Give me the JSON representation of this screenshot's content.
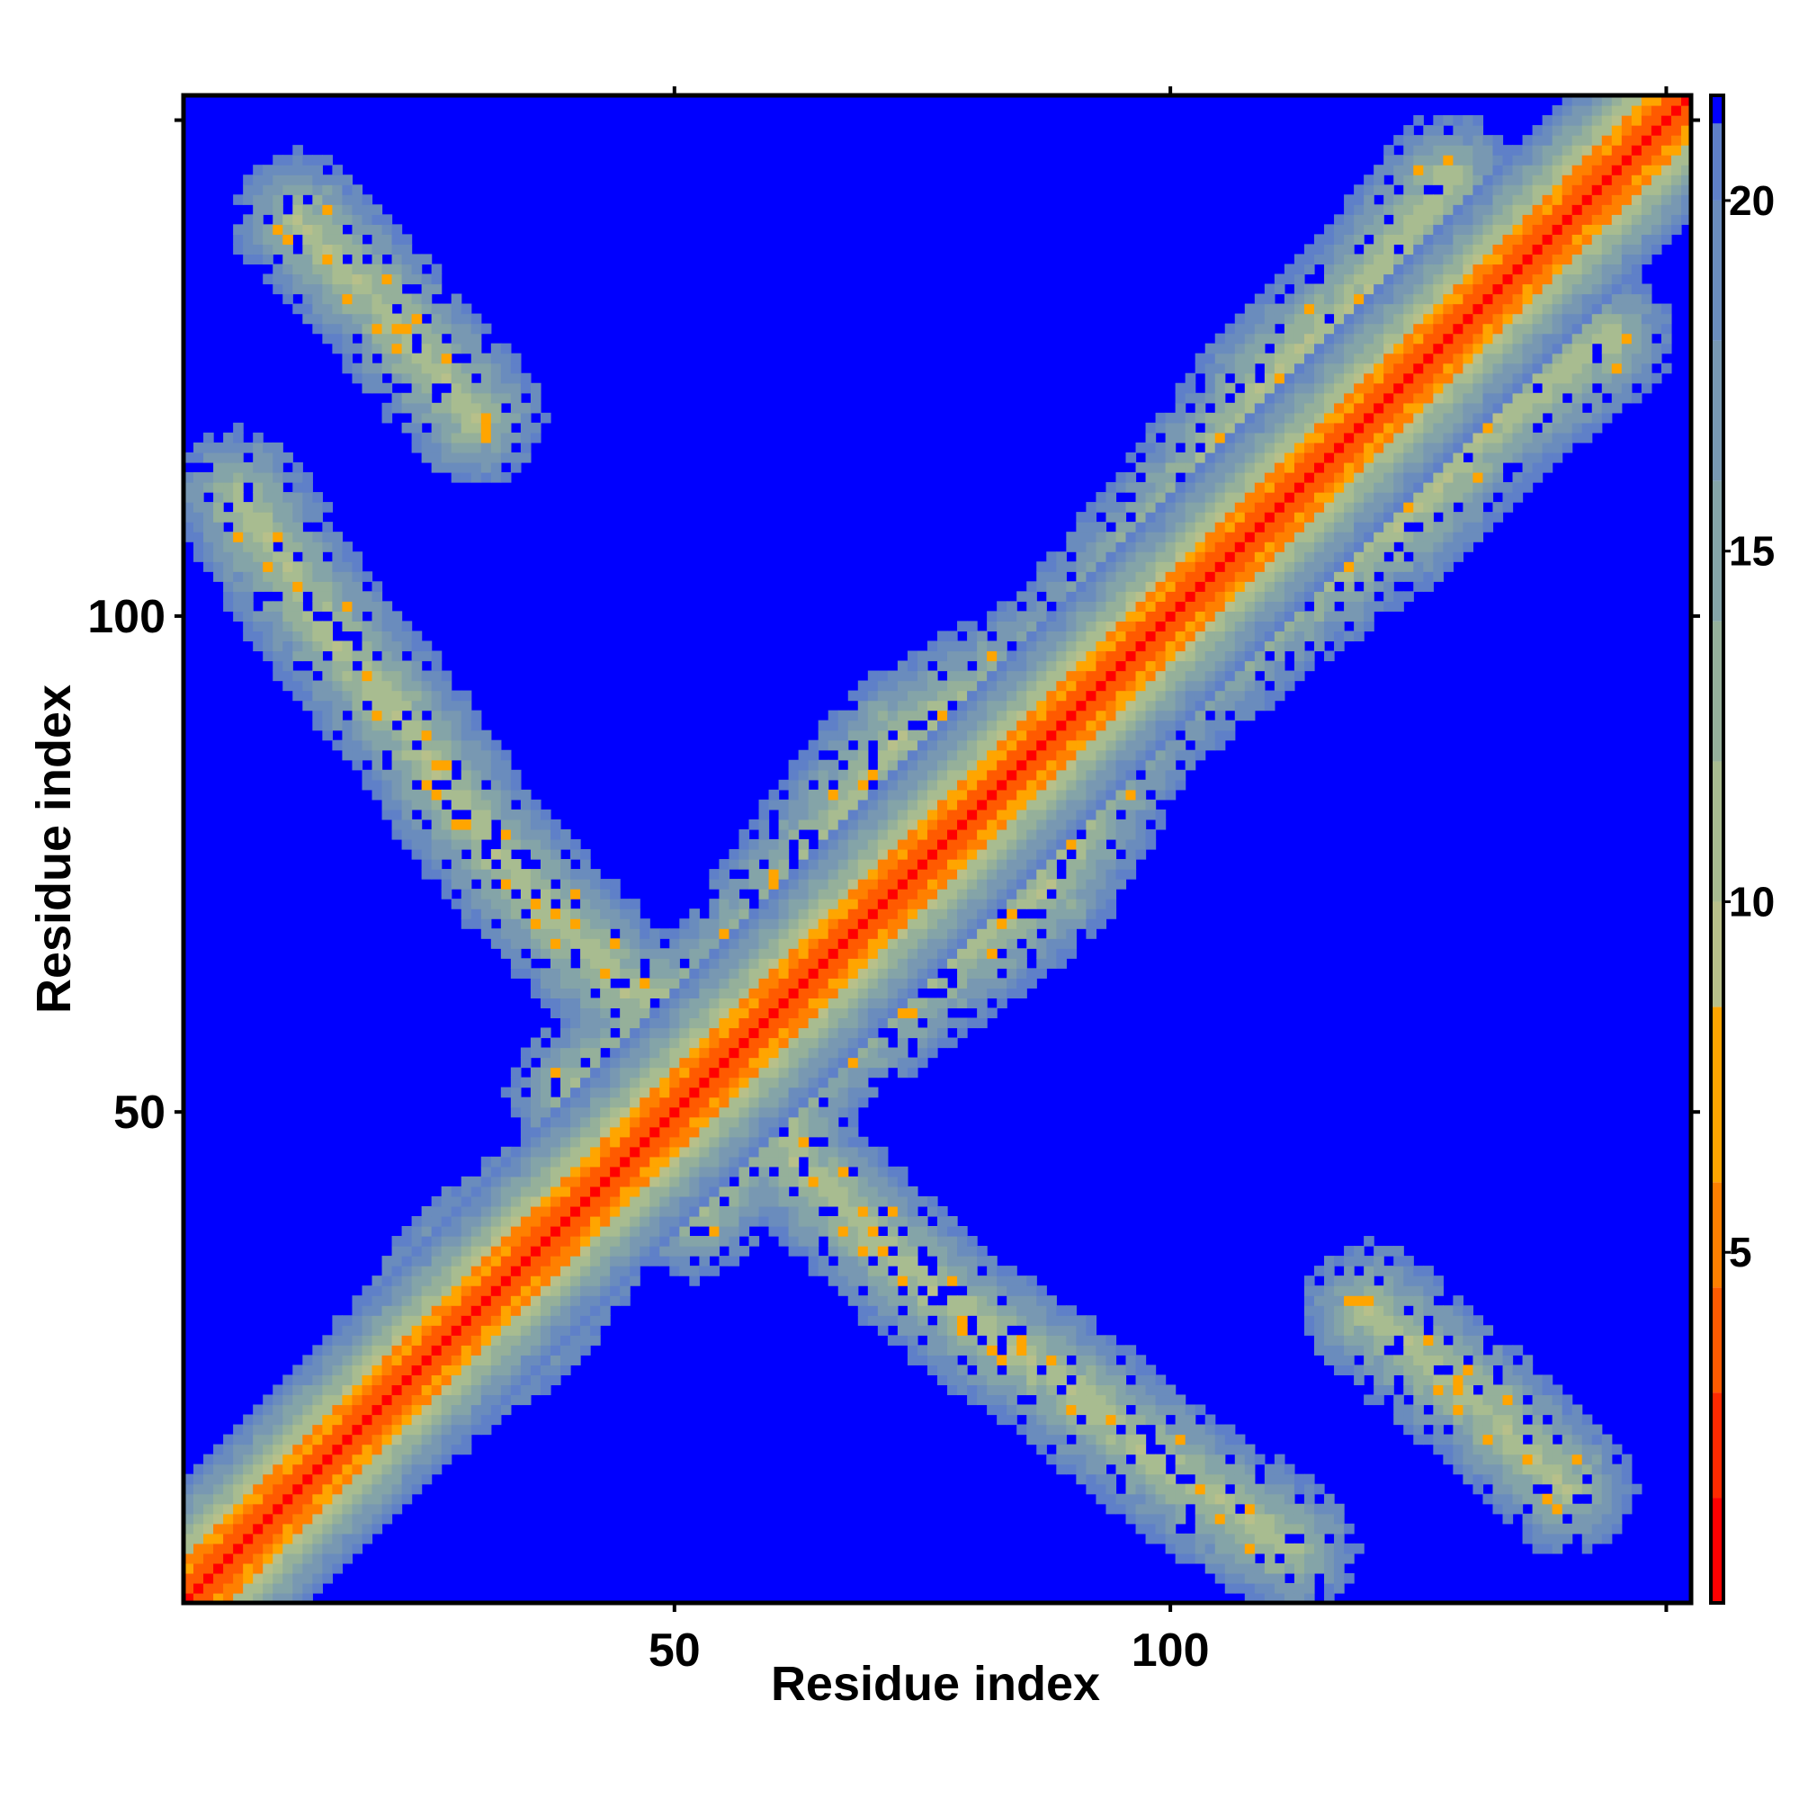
{
  "chart_data": {
    "type": "heatmap",
    "title": "",
    "xlabel": "Residue index",
    "ylabel": "Residue index",
    "xlim": [
      1,
      152
    ],
    "ylim": [
      1,
      152
    ],
    "x_ticks": [
      50,
      100
    ],
    "y_ticks": [
      50,
      100
    ],
    "grid": false,
    "legend": "right colorbar",
    "colorbar": {
      "range": [
        0,
        21.5
      ],
      "ticks": [
        5,
        10,
        15,
        20
      ],
      "levels": [
        {
          "from": 0,
          "to": 1.5,
          "color": "#ff0000"
        },
        {
          "from": 1.5,
          "to": 3,
          "color": "#ff2a00"
        },
        {
          "from": 3,
          "to": 4.5,
          "color": "#ff5a00"
        },
        {
          "from": 4.5,
          "to": 6,
          "color": "#ff8000"
        },
        {
          "from": 6,
          "to": 8.5,
          "color": "#ffa500"
        },
        {
          "from": 8.5,
          "to": 10,
          "color": "#b8c08a"
        },
        {
          "from": 10,
          "to": 12,
          "color": "#a8bc90"
        },
        {
          "from": 12,
          "to": 14,
          "color": "#95b09a"
        },
        {
          "from": 14,
          "to": 16,
          "color": "#84a4a8"
        },
        {
          "from": 16,
          "to": 18,
          "color": "#7898b2"
        },
        {
          "from": 18,
          "to": 20,
          "color": "#6a8cbd"
        },
        {
          "from": 20,
          "to": 21.5,
          "color": "#5f80c8"
        }
      ],
      "background_color": "#0000ff"
    },
    "description": "Symmetric residue-residue distance map; diagonal band of low distance (red/orange) flanked by green-blue; off-diagonal contact bands forming a wavy X-shaped pattern; values above ~21 shown in blue."
  }
}
